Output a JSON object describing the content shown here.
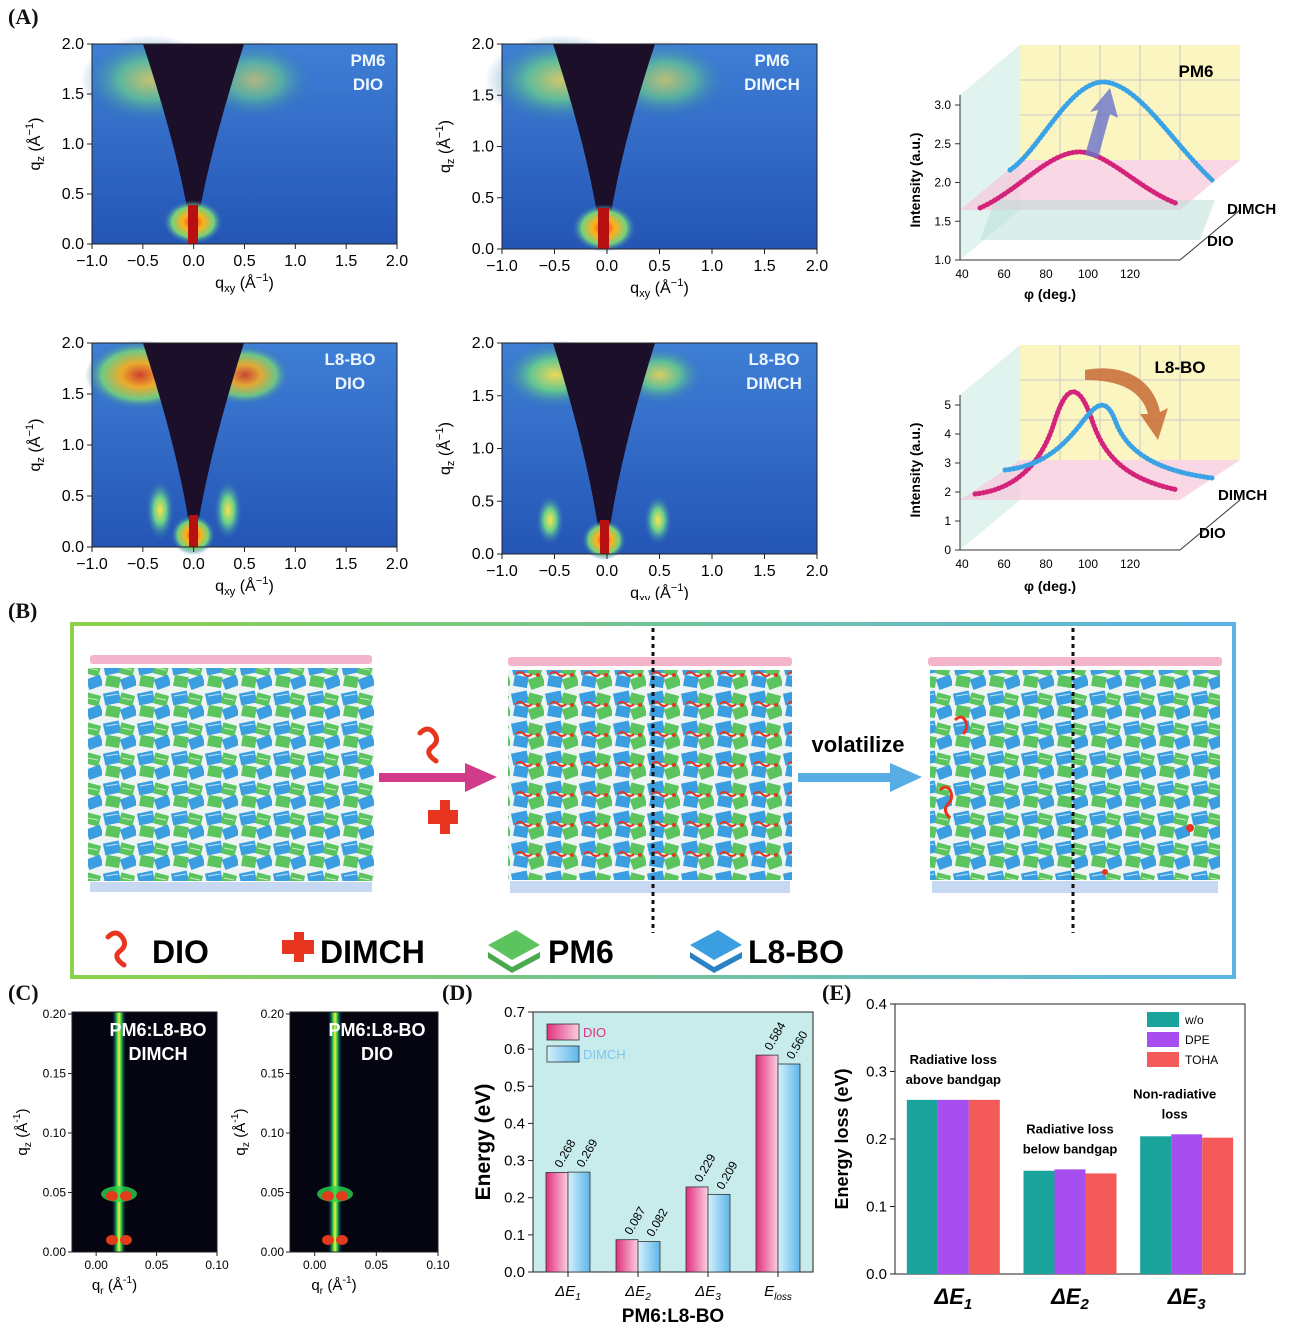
{
  "panel_letters": {
    "a": "(A)",
    "b": "(B)",
    "c": "(C)",
    "d": "(D)",
    "e": "(E)"
  },
  "giwaxs_axes": {
    "x_ticks": [
      "−1.0",
      "−0.5",
      "0.0",
      "0.5",
      "1.0",
      "1.5",
      "2.0"
    ],
    "y_ticks": [
      "0.0",
      "0.5",
      "1.0",
      "1.5",
      "2.0"
    ],
    "xlabel": "q",
    "xlabel_sub": "xy",
    "xlabel_unit": "(Å",
    "xlabel_exp": "−1",
    "ylabel": "q",
    "ylabel_sub": "z",
    "ylabel_unit": "(Å",
    "ylabel_exp": "−1"
  },
  "giwaxs_maps": [
    {
      "line1": "PM6",
      "line2": "DIO"
    },
    {
      "line1": "PM6",
      "line2": "DIMCH"
    },
    {
      "line1": "L8-BO",
      "line2": "DIO"
    },
    {
      "line1": "L8-BO",
      "line2": "DIMCH"
    }
  ],
  "pole_figures": {
    "x_ticks": [
      "40",
      "60",
      "80",
      "100",
      "120"
    ],
    "xlabel": "φ (deg.)",
    "ylabel": "Intensity (a.u.)",
    "series_labels": [
      "DIMCH",
      "DIO"
    ],
    "pm6": {
      "title": "PM6",
      "y_ticks": [
        "1.0",
        "1.5",
        "2.0",
        "2.5",
        "3.0"
      ]
    },
    "l8bo": {
      "title": "L8-BO",
      "y_ticks": [
        "0",
        "1",
        "2",
        "3",
        "4",
        "5"
      ]
    }
  },
  "schematic": {
    "arrow_label": "volatilize",
    "legend": [
      "DIO",
      "DIMCH",
      "PM6",
      "L8-BO"
    ],
    "colors": {
      "green": "#5cc45f",
      "blue": "#3a9ee0",
      "red": "#e8351f",
      "pink": "#f4b4cc",
      "frame_green": "#8bd24a",
      "frame_blue": "#5ab4e6"
    }
  },
  "gisaxs": {
    "x_ticks": [
      "0.00",
      "0.05",
      "0.10"
    ],
    "y_ticks": [
      "0.00",
      "0.05",
      "0.10",
      "0.15",
      "0.20"
    ],
    "xlabel": "q",
    "xlabel_sub": "r",
    "xlabel_unit": "(Å",
    "xlabel_exp": "-1",
    "ylabel": "q",
    "ylabel_sub": "z",
    "ylabel_unit": "(Å",
    "ylabel_exp": "-1",
    "maps": [
      {
        "line1": "PM6:L8-BO",
        "line2": "DIMCH"
      },
      {
        "line1": "PM6:L8-BO",
        "line2": "DIO"
      }
    ]
  },
  "chart_data": [
    {
      "panel": "D",
      "type": "bar",
      "categories": [
        "ΔE1",
        "ΔE2",
        "ΔE3",
        "Eloss"
      ],
      "category_labels": [
        {
          "main": "ΔE",
          "sub": "1"
        },
        {
          "main": "ΔE",
          "sub": "2"
        },
        {
          "main": "ΔE",
          "sub": "3"
        },
        {
          "main": "E",
          "sub": "loss"
        }
      ],
      "series": [
        {
          "name": "DIO",
          "values": [
            0.268,
            0.087,
            0.229,
            0.584
          ],
          "color": "#e0307e"
        },
        {
          "name": "DIMCH",
          "values": [
            0.269,
            0.082,
            0.209,
            0.56
          ],
          "color": "#7cc6ee"
        }
      ],
      "value_labels": {
        "DIO": [
          "0.268",
          "0.087",
          "0.229",
          "0.584"
        ],
        "DIMCH": [
          "0.269",
          "0.082",
          "0.209",
          "0.560"
        ]
      },
      "y_ticks": [
        "0.0",
        "0.1",
        "0.2",
        "0.3",
        "0.4",
        "0.5",
        "0.6",
        "0.7"
      ],
      "ylabel": "Energy (eV)",
      "xlabel": "PM6:L8-BO",
      "ylim": [
        0,
        0.7
      ],
      "background": "#c8ecec",
      "legend_position": "top-left"
    },
    {
      "panel": "E",
      "type": "bar",
      "categories": [
        "ΔE1",
        "ΔE2",
        "ΔE3"
      ],
      "category_labels": [
        {
          "main": "ΔE",
          "sub": "1"
        },
        {
          "main": "ΔE",
          "sub": "2"
        },
        {
          "main": "ΔE",
          "sub": "3"
        }
      ],
      "series": [
        {
          "name": "w/o",
          "values": [
            0.258,
            0.153,
            0.204
          ],
          "color": "#1aa39a"
        },
        {
          "name": "DPE",
          "values": [
            0.258,
            0.155,
            0.207
          ],
          "color": "#a64ef0"
        },
        {
          "name": "TOHA",
          "values": [
            0.258,
            0.149,
            0.202
          ],
          "color": "#f55a5a"
        }
      ],
      "annotations": [
        [
          "Radiative loss",
          "above bandgap"
        ],
        [
          "Radiative loss",
          "below bandgap"
        ],
        [
          "Non-radiative",
          "loss"
        ]
      ],
      "y_ticks": [
        "0.0",
        "0.1",
        "0.2",
        "0.3",
        "0.4"
      ],
      "ylabel": "Energy loss (eV)",
      "ylim": [
        0,
        0.4
      ],
      "legend_position": "top-right"
    }
  ]
}
